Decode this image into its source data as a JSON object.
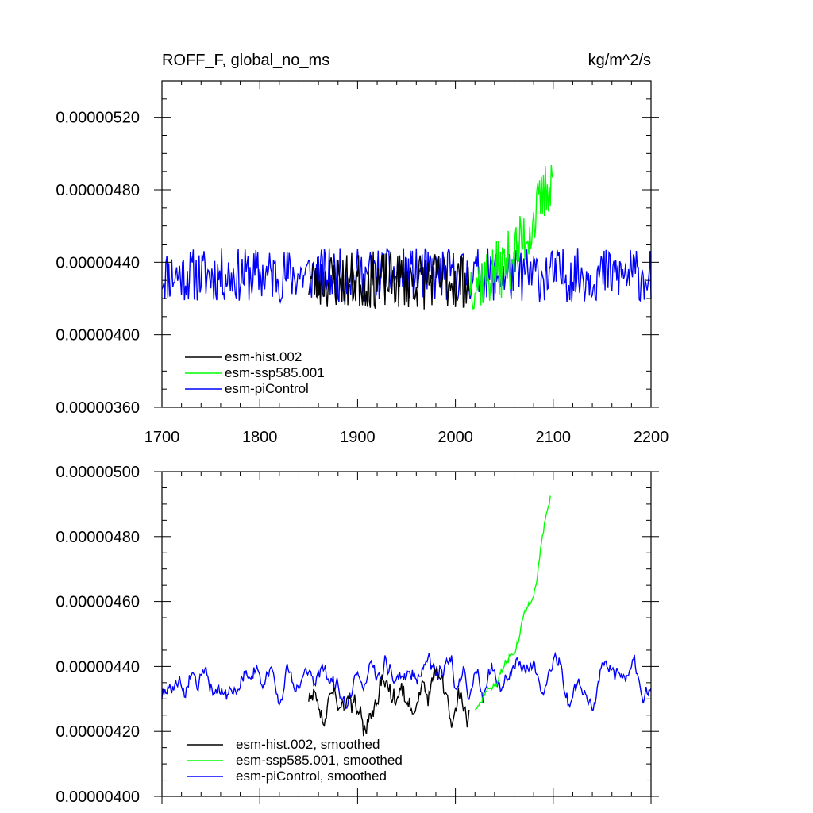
{
  "chart_data": [
    {
      "type": "line",
      "title": "ROFF_F, global_no_ms",
      "units": "kg/m^2/s",
      "xlim": [
        1700,
        2200
      ],
      "ylim": [
        3.6e-06,
        5.4e-06
      ],
      "x_ticks": [
        {
          "value": 1700,
          "label": "1700"
        },
        {
          "value": 1800,
          "label": "1800"
        },
        {
          "value": 1900,
          "label": "1900"
        },
        {
          "value": 2000,
          "label": "2000"
        },
        {
          "value": 2100,
          "label": "2100"
        },
        {
          "value": 2200,
          "label": "2200"
        }
      ],
      "y_ticks": [
        {
          "value": 3.6e-06,
          "label": "0.00000360"
        },
        {
          "value": 4e-06,
          "label": "0.00000400"
        },
        {
          "value": 4.4e-06,
          "label": "0.00000440"
        },
        {
          "value": 4.8e-06,
          "label": "0.00000480"
        },
        {
          "value": 5.2e-06,
          "label": "0.00000520"
        }
      ],
      "legend_position": "lower-left",
      "series": [
        {
          "name": "esm-piControl",
          "color": "#0000ff",
          "start": 1700,
          "end": 2200,
          "mean": 4.33e-06,
          "amp": 1.5e-07,
          "drift": 0,
          "seed": 11,
          "smooth": false
        },
        {
          "name": "esm-hist.002",
          "color": "#000000",
          "start": 1850,
          "end": 2014,
          "mean": 4.3e-06,
          "amp": 1.6e-07,
          "drift": 0,
          "seed": 23,
          "smooth": false
        },
        {
          "name": "esm-ssp585.001",
          "color": "#00ff00",
          "start": 2015,
          "end": 2100,
          "mean": 4.3e-06,
          "amp": 1.7e-07,
          "drift": 6e-07,
          "seed": 37,
          "smooth": false
        }
      ]
    },
    {
      "type": "line",
      "title": "",
      "xlim": [
        1700,
        2200
      ],
      "ylim": [
        4e-06,
        5e-06
      ],
      "y_ticks": [
        {
          "value": 4e-06,
          "label": "0.00000400"
        },
        {
          "value": 4.2e-06,
          "label": "0.00000420"
        },
        {
          "value": 4.4e-06,
          "label": "0.00000440"
        },
        {
          "value": 4.6e-06,
          "label": "0.00000460"
        },
        {
          "value": 4.8e-06,
          "label": "0.00000480"
        },
        {
          "value": 5e-06,
          "label": "0.00000500"
        }
      ],
      "legend_position": "lower-left",
      "series": [
        {
          "name": "esm-piControl, smoothed",
          "color": "#0000ff",
          "start": 1700,
          "end": 2200,
          "mean": 4.36e-06,
          "amp": 5.5e-08,
          "drift": 0,
          "seed": 11,
          "smooth": true
        },
        {
          "name": "esm-hist.002, smoothed",
          "color": "#000000",
          "start": 1850,
          "end": 2014,
          "mean": 4.3e-06,
          "amp": 7.5e-08,
          "drift": 0,
          "seed": 23,
          "smooth": true
        },
        {
          "name": "esm-ssp585.001, smoothed",
          "color": "#00ff00",
          "start": 2020,
          "end": 2097,
          "mean": 4.32e-06,
          "amp": 3e-08,
          "drift": 5.8e-07,
          "seed": 37,
          "smooth": true
        }
      ]
    }
  ]
}
